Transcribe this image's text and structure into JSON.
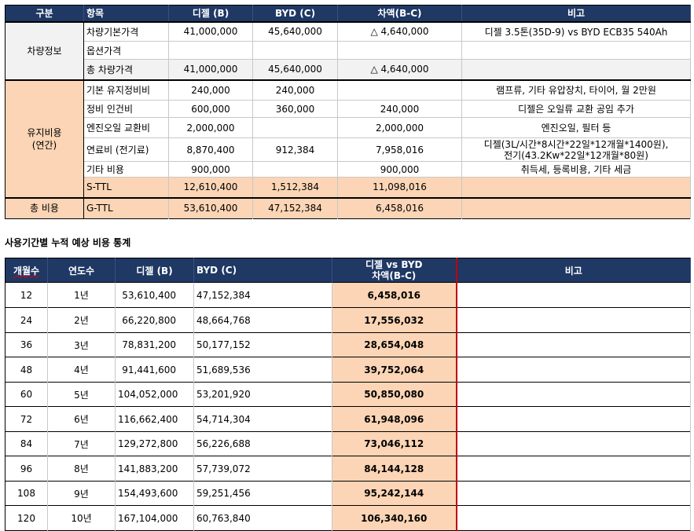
{
  "table1": {
    "headers": [
      "구분",
      "항목",
      "디젤 (B)",
      "BYD (C)",
      "차액(B-C)",
      "비고"
    ],
    "group_vehicle": "차량정보",
    "vehicle_rows": [
      {
        "item": "차량기본가격",
        "diesel": "41,000,000",
        "byd": "45,640,000",
        "diff": "△ 4,640,000",
        "note": "디젤 3.5톤(35D-9) vs BYD ECB35 540Ah"
      },
      {
        "item": "옵션가격",
        "diesel": "",
        "byd": "",
        "diff": "",
        "note": ""
      },
      {
        "item": "총 차량가격",
        "diesel": "41,000,000",
        "byd": "45,640,000",
        "diff": "△ 4,640,000",
        "note": ""
      }
    ],
    "group_maint_line1": "유지비용",
    "group_maint_line2": "(연간)",
    "maint_rows": [
      {
        "item": "기본 유지정비비",
        "diesel": "240,000",
        "byd": "240,000",
        "diff": "",
        "note": "램프류, 기타 유압장치, 타이어, 월 2만원"
      },
      {
        "item": "정비 인건비",
        "diesel": "600,000",
        "byd": "360,000",
        "diff": "240,000",
        "note": "디젤은 오일류 교환 공임 추가"
      },
      {
        "item": "엔진오일 교환비",
        "diesel": "2,000,000",
        "byd": "",
        "diff": "2,000,000",
        "note": "엔진오일, 필터 등"
      },
      {
        "item": "연료비 (전기료)",
        "diesel": "8,870,400",
        "byd": "912,384",
        "diff": "7,958,016",
        "note_line1": "디젤(3L/시간*8시간*22일*12개월*1400원),",
        "note_line2": "전기(43.2Kw*22일*12개월*80원)"
      },
      {
        "item": "기타 비용",
        "diesel": "900,000",
        "byd": "",
        "diff": "900,000",
        "note": "취득세,  등록비용, 기타 세금"
      }
    ],
    "subtotal": {
      "item": "S-TTL",
      "diesel": "12,610,400",
      "byd": "1,512,384",
      "diff": "11,098,016"
    },
    "total": {
      "group": "총 비용",
      "item": "G-TTL",
      "diesel": "53,610,400",
      "byd": "47,152,384",
      "diff": "6,458,016"
    }
  },
  "caption": "사용기간별 누적 예상 비용 통계",
  "table2": {
    "headers": {
      "months": "개월수",
      "years": "연도수",
      "diesel": "디젤 (B)",
      "byd": "BYD (C)",
      "diff_line1": "디젤 vs BYD",
      "diff_line2": "차액(B-C)",
      "note": "비고"
    },
    "rows": [
      {
        "months": "12",
        "years": "1년",
        "diesel": "53,610,400",
        "byd": "47,152,384",
        "diff": "6,458,016"
      },
      {
        "months": "24",
        "years": "2년",
        "diesel": "66,220,800",
        "byd": "48,664,768",
        "diff": "17,556,032"
      },
      {
        "months": "36",
        "years": "3년",
        "diesel": "78,831,200",
        "byd": "50,177,152",
        "diff": "28,654,048"
      },
      {
        "months": "48",
        "years": "4년",
        "diesel": "91,441,600",
        "byd": "51,689,536",
        "diff": "39,752,064"
      },
      {
        "months": "60",
        "years": "5년",
        "diesel": "104,052,000",
        "byd": "53,201,920",
        "diff": "50,850,080"
      },
      {
        "months": "72",
        "years": "6년",
        "diesel": "116,662,400",
        "byd": "54,714,304",
        "diff": "61,948,096"
      },
      {
        "months": "84",
        "years": "7년",
        "diesel": "129,272,800",
        "byd": "56,226,688",
        "diff": "73,046,112"
      },
      {
        "months": "96",
        "years": "8년",
        "diesel": "141,883,200",
        "byd": "57,739,072",
        "diff": "84,144,128"
      },
      {
        "months": "108",
        "years": "9년",
        "diesel": "154,493,600",
        "byd": "59,251,456",
        "diff": "95,242,144"
      },
      {
        "months": "120",
        "years": "10년",
        "diesel": "167,104,000",
        "byd": "60,763,840",
        "diff": "106,340,160"
      }
    ]
  },
  "colors": {
    "header_bg": "#1f3864",
    "header_text": "#ffffff",
    "peach": "#fbd5b5",
    "gray": "#f2f2f2",
    "red_line": "#c00000"
  }
}
